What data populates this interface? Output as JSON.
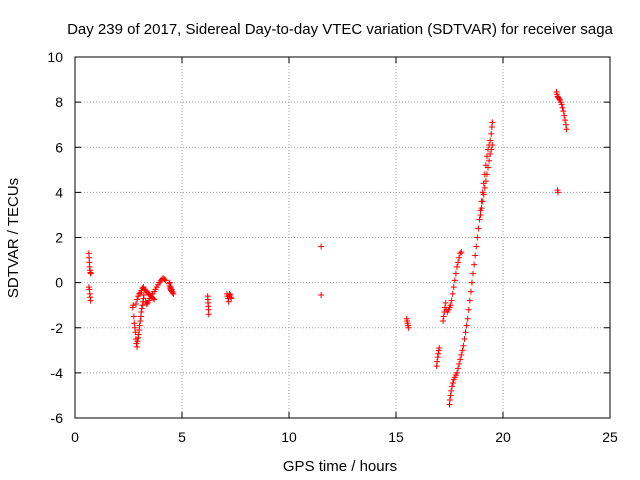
{
  "chart_data": {
    "type": "scatter",
    "title": "Day 239 of 2017, Sidereal Day-to-day VTEC variation (SDTVAR) for receiver saga",
    "xlabel": "GPS time / hours",
    "ylabel": "SDTVAR / TECUs",
    "xlim": [
      0,
      25
    ],
    "ylim": [
      -6,
      10
    ],
    "xticks": [
      "0",
      "5",
      "10",
      "15",
      "20",
      "25"
    ],
    "yticks": [
      "-6",
      "-4",
      "-2",
      "0",
      "2",
      "4",
      "6",
      "8",
      "10"
    ],
    "grid": true,
    "legend": "none",
    "marker": "+",
    "color": "#ff0000",
    "series": [
      {
        "name": "SDTVAR",
        "points": [
          [
            0.65,
            1.3
          ],
          [
            0.66,
            1.1
          ],
          [
            0.67,
            0.9
          ],
          [
            0.68,
            0.7
          ],
          [
            0.7,
            0.55
          ],
          [
            0.72,
            0.45
          ],
          [
            0.74,
            0.4
          ],
          [
            0.65,
            -0.2
          ],
          [
            0.67,
            -0.3
          ],
          [
            0.69,
            -0.5
          ],
          [
            0.71,
            -0.65
          ],
          [
            0.73,
            -0.8
          ],
          [
            2.7,
            -1.1
          ],
          [
            2.72,
            -1.0
          ],
          [
            2.75,
            -1.5
          ],
          [
            2.77,
            -1.8
          ],
          [
            2.8,
            -2.0
          ],
          [
            2.82,
            -2.2
          ],
          [
            2.85,
            -2.5
          ],
          [
            2.87,
            -2.7
          ],
          [
            2.9,
            -2.85
          ],
          [
            2.92,
            -2.6
          ],
          [
            2.95,
            -2.45
          ],
          [
            2.97,
            -2.3
          ],
          [
            3.0,
            -2.1
          ],
          [
            3.02,
            -1.9
          ],
          [
            3.05,
            -1.7
          ],
          [
            3.08,
            -1.5
          ],
          [
            3.1,
            -1.3
          ],
          [
            3.12,
            -1.15
          ],
          [
            3.15,
            -1.0
          ],
          [
            3.18,
            -0.85
          ],
          [
            3.2,
            -0.7
          ],
          [
            3.22,
            -0.55
          ],
          [
            2.85,
            -0.95
          ],
          [
            2.9,
            -0.75
          ],
          [
            2.95,
            -0.6
          ],
          [
            3.0,
            -0.5
          ],
          [
            3.05,
            -0.45
          ],
          [
            3.1,
            -0.35
          ],
          [
            3.15,
            -0.25
          ],
          [
            3.2,
            -0.2
          ],
          [
            3.25,
            -0.3
          ],
          [
            3.3,
            -0.35
          ],
          [
            3.35,
            -0.4
          ],
          [
            3.4,
            -0.45
          ],
          [
            3.45,
            -0.5
          ],
          [
            3.5,
            -0.55
          ],
          [
            3.55,
            -0.6
          ],
          [
            3.6,
            -0.65
          ],
          [
            3.65,
            -0.7
          ],
          [
            3.7,
            -0.75
          ],
          [
            3.3,
            -0.85
          ],
          [
            3.35,
            -0.95
          ],
          [
            3.4,
            -0.9
          ],
          [
            3.45,
            -0.8
          ],
          [
            3.5,
            -0.7
          ],
          [
            3.55,
            -0.6
          ],
          [
            3.62,
            -0.5
          ],
          [
            3.7,
            -0.4
          ],
          [
            3.76,
            -0.3
          ],
          [
            3.82,
            -0.2
          ],
          [
            3.88,
            -0.1
          ],
          [
            3.94,
            0.0
          ],
          [
            4.0,
            0.08
          ],
          [
            4.06,
            0.15
          ],
          [
            4.12,
            0.2
          ],
          [
            4.18,
            0.15
          ],
          [
            4.24,
            0.1
          ],
          [
            4.4,
            -0.05
          ],
          [
            4.42,
            -0.15
          ],
          [
            4.45,
            -0.25
          ],
          [
            4.48,
            -0.3
          ],
          [
            4.5,
            -0.35
          ],
          [
            4.53,
            -0.4
          ],
          [
            4.56,
            -0.45
          ],
          [
            4.6,
            -0.5
          ],
          [
            4.43,
            0.0
          ],
          [
            4.47,
            -0.2
          ],
          [
            4.52,
            -0.3
          ],
          [
            6.2,
            -0.6
          ],
          [
            6.21,
            -0.75
          ],
          [
            6.22,
            -0.9
          ],
          [
            6.23,
            -1.05
          ],
          [
            6.24,
            -1.2
          ],
          [
            6.25,
            -1.4
          ],
          [
            7.1,
            -0.5
          ],
          [
            7.12,
            -0.6
          ],
          [
            7.15,
            -0.7
          ],
          [
            7.18,
            -0.85
          ],
          [
            7.2,
            -0.6
          ],
          [
            7.22,
            -0.5
          ],
          [
            7.25,
            -0.55
          ],
          [
            7.28,
            -0.65
          ],
          [
            7.3,
            -0.7
          ],
          [
            11.5,
            1.6
          ],
          [
            11.5,
            -0.55
          ],
          [
            15.5,
            -1.6
          ],
          [
            15.52,
            -1.7
          ],
          [
            15.54,
            -1.8
          ],
          [
            15.56,
            -1.9
          ],
          [
            15.58,
            -2.0
          ],
          [
            16.9,
            -3.7
          ],
          [
            16.92,
            -3.5
          ],
          [
            16.95,
            -3.3
          ],
          [
            16.97,
            -3.15
          ],
          [
            17.0,
            -3.0
          ],
          [
            17.02,
            -2.9
          ],
          [
            17.2,
            -1.7
          ],
          [
            17.23,
            -1.5
          ],
          [
            17.26,
            -1.3
          ],
          [
            17.29,
            -1.1
          ],
          [
            17.32,
            -0.9
          ],
          [
            17.35,
            -1.2
          ],
          [
            17.4,
            -1.3
          ],
          [
            17.45,
            -1.2
          ],
          [
            17.5,
            -1.1
          ],
          [
            17.55,
            -1.0
          ],
          [
            17.6,
            -0.8
          ],
          [
            17.65,
            -0.5
          ],
          [
            17.7,
            -0.2
          ],
          [
            17.75,
            0.1
          ],
          [
            17.8,
            0.4
          ],
          [
            17.85,
            0.7
          ],
          [
            17.9,
            0.9
          ],
          [
            17.95,
            1.1
          ],
          [
            18.0,
            1.3
          ],
          [
            18.05,
            1.35
          ],
          [
            17.5,
            -5.4
          ],
          [
            17.52,
            -5.2
          ],
          [
            17.55,
            -5.0
          ],
          [
            17.58,
            -4.8
          ],
          [
            17.62,
            -4.6
          ],
          [
            17.66,
            -4.45
          ],
          [
            17.7,
            -4.3
          ],
          [
            17.75,
            -4.2
          ],
          [
            17.8,
            -4.1
          ],
          [
            17.85,
            -4.0
          ],
          [
            17.9,
            -3.8
          ],
          [
            17.95,
            -3.6
          ],
          [
            18.0,
            -3.4
          ],
          [
            18.05,
            -3.2
          ],
          [
            18.1,
            -3.0
          ],
          [
            18.15,
            -2.8
          ],
          [
            18.2,
            -2.5
          ],
          [
            18.25,
            -2.2
          ],
          [
            18.3,
            -1.9
          ],
          [
            18.35,
            -1.6
          ],
          [
            18.4,
            -1.2
          ],
          [
            18.45,
            -0.8
          ],
          [
            18.5,
            -0.4
          ],
          [
            18.55,
            0.0
          ],
          [
            18.6,
            0.4
          ],
          [
            18.65,
            0.8
          ],
          [
            18.7,
            1.2
          ],
          [
            18.75,
            1.6
          ],
          [
            18.8,
            2.0
          ],
          [
            18.85,
            2.4
          ],
          [
            18.9,
            2.8
          ],
          [
            18.95,
            3.2
          ],
          [
            19.0,
            3.6
          ],
          [
            19.05,
            4.0
          ],
          [
            19.1,
            4.4
          ],
          [
            19.15,
            4.8
          ],
          [
            19.2,
            5.2
          ],
          [
            19.25,
            5.6
          ],
          [
            19.3,
            5.9
          ],
          [
            19.35,
            6.1
          ],
          [
            19.4,
            6.3
          ],
          [
            19.45,
            6.6
          ],
          [
            19.48,
            6.9
          ],
          [
            19.5,
            7.1
          ],
          [
            18.95,
            3.0
          ],
          [
            19.0,
            3.3
          ],
          [
            19.05,
            3.6
          ],
          [
            19.1,
            3.9
          ],
          [
            19.15,
            4.2
          ],
          [
            19.2,
            4.5
          ],
          [
            19.25,
            4.8
          ],
          [
            19.3,
            5.1
          ],
          [
            19.35,
            5.4
          ],
          [
            19.4,
            5.7
          ],
          [
            19.45,
            5.9
          ],
          [
            19.5,
            6.1
          ],
          [
            22.5,
            8.45
          ],
          [
            22.52,
            8.35
          ],
          [
            22.55,
            8.25
          ],
          [
            22.58,
            8.2
          ],
          [
            22.62,
            8.15
          ],
          [
            22.66,
            8.1
          ],
          [
            22.7,
            8.0
          ],
          [
            22.74,
            7.9
          ],
          [
            22.78,
            7.75
          ],
          [
            22.82,
            7.6
          ],
          [
            22.86,
            7.4
          ],
          [
            22.9,
            7.2
          ],
          [
            22.94,
            7.0
          ],
          [
            22.97,
            6.8
          ],
          [
            22.55,
            4.1
          ],
          [
            22.57,
            4.0
          ]
        ]
      }
    ]
  }
}
